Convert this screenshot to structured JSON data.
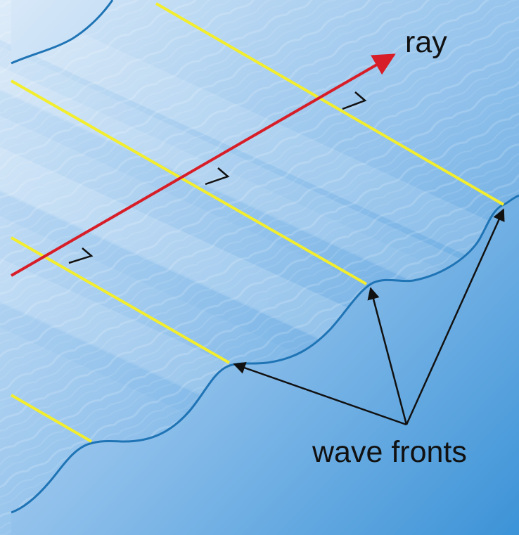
{
  "labels": {
    "ray": "ray",
    "wave_fronts": "wave fronts"
  },
  "colors": {
    "background_light": "#d7e8f8",
    "background_mid": "#8fc0eb",
    "background_dark": "#3c93d7",
    "wave_edge": "#1f74b5",
    "wave_front_line": "#f3ee2d",
    "ray_arrow": "#d71e28",
    "pointer_arrows": "#111111",
    "right_angle_marker": "#111111"
  },
  "icons": {
    "ray_arrow": "red-arrow",
    "wave_front_pointers": "black-arrow",
    "right_angle_markers": "right-angle-mark"
  }
}
